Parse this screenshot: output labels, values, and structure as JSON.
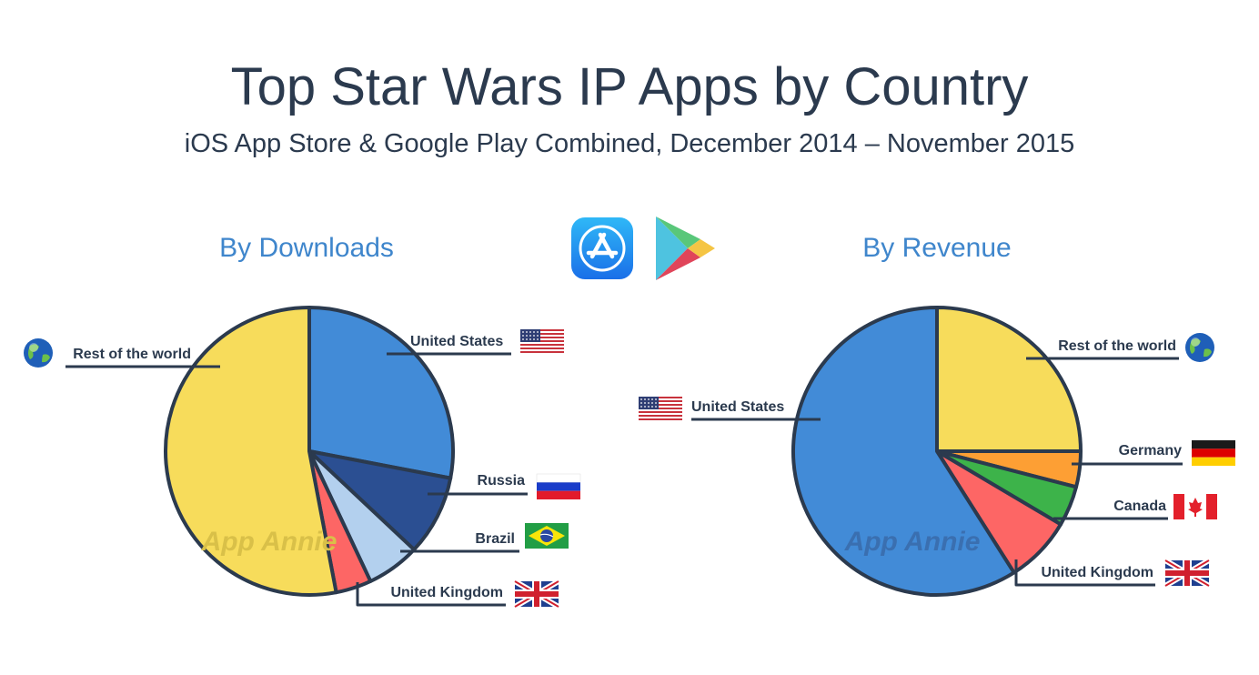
{
  "header": {
    "title": "Top Star Wars IP Apps by Country",
    "subtitle": "iOS App Store & Google Play Combined, December 2014 – November 2015"
  },
  "icons": [
    "app-store-icon",
    "google-play-icon"
  ],
  "watermark": "App Annie",
  "chart_data": [
    {
      "type": "pie",
      "title": "By Downloads",
      "slices": [
        {
          "label": "United States",
          "value": 28,
          "color": "#428bd7",
          "flag": "us-flag-icon"
        },
        {
          "label": "Russia",
          "value": 9,
          "color": "#2b4f92",
          "flag": "russia-flag-icon"
        },
        {
          "label": "Brazil",
          "value": 6,
          "color": "#b3d0ee",
          "flag": "brazil-flag-icon"
        },
        {
          "label": "United Kingdom",
          "value": 4,
          "color": "#fd6665",
          "flag": "uk-flag-icon"
        },
        {
          "label": "Rest of the world",
          "value": 53,
          "color": "#f7dc5b",
          "flag": "globe-icon"
        }
      ]
    },
    {
      "type": "pie",
      "title": "By Revenue",
      "slices": [
        {
          "label": "Rest of the world",
          "value": 25,
          "color": "#f7dc5b",
          "flag": "globe-icon"
        },
        {
          "label": "Germany",
          "value": 4,
          "color": "#fd9f34",
          "flag": "germany-flag-icon"
        },
        {
          "label": "Canada",
          "value": 4.5,
          "color": "#3db34a",
          "flag": "canada-flag-icon"
        },
        {
          "label": "United Kingdom",
          "value": 7.5,
          "color": "#fd6665",
          "flag": "uk-flag-icon"
        },
        {
          "label": "United States",
          "value": 59,
          "color": "#428bd7",
          "flag": "us-flag-icon"
        }
      ]
    }
  ]
}
